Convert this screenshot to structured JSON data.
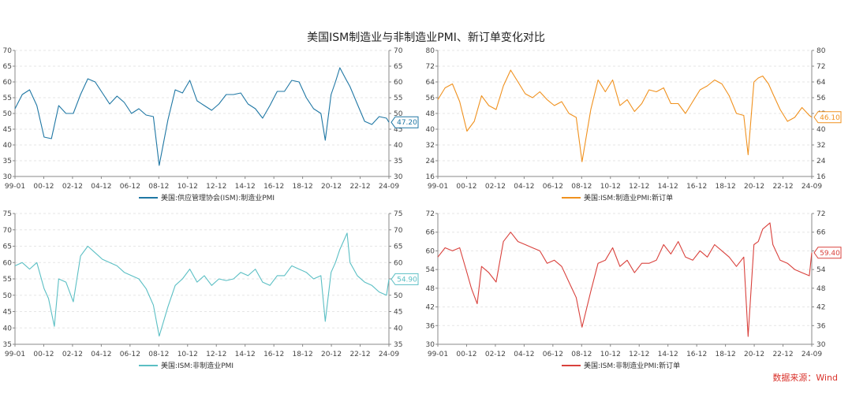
{
  "title": "美国ISM制造业与非制造业PMI、新订单变化对比",
  "source": "数据来源：Wind",
  "chart_data": [
    {
      "type": "line",
      "legend": "美国:供应管理协会(ISM):制造业PMI",
      "color": "#1f77a4",
      "ylim": [
        30,
        70
      ],
      "yticks": [
        30,
        35,
        40,
        45,
        50,
        55,
        60,
        65,
        70
      ],
      "xticks": [
        "99-01",
        "00-12",
        "02-12",
        "04-12",
        "06-12",
        "08-12",
        "10-12",
        "12-12",
        "14-12",
        "16-12",
        "18-12",
        "20-12",
        "22-12",
        "24-09"
      ],
      "last_value_label": "47.20",
      "x": [
        1999.0,
        1999.5,
        2000.0,
        2000.5,
        2001.0,
        2001.5,
        2002.0,
        2002.5,
        2003.0,
        2003.5,
        2004.0,
        2004.5,
        2005.0,
        2005.5,
        2006.0,
        2006.5,
        2007.0,
        2007.5,
        2008.0,
        2008.5,
        2008.9,
        2009.5,
        2010.0,
        2010.5,
        2011.0,
        2011.5,
        2012.0,
        2012.5,
        2013.0,
        2013.5,
        2014.0,
        2014.5,
        2015.0,
        2015.5,
        2016.0,
        2016.5,
        2017.0,
        2017.5,
        2018.0,
        2018.5,
        2019.0,
        2019.5,
        2020.0,
        2020.3,
        2020.7,
        2021.0,
        2021.3,
        2021.7,
        2022.0,
        2022.5,
        2023.0,
        2023.5,
        2024.0,
        2024.5,
        2024.67
      ],
      "values": [
        51.5,
        56.0,
        57.5,
        52.5,
        42.5,
        42.0,
        52.5,
        50.0,
        50.0,
        56.0,
        61.0,
        60.0,
        56.5,
        53.0,
        55.5,
        53.5,
        50.0,
        51.5,
        49.5,
        49.0,
        33.5,
        48.0,
        57.5,
        56.5,
        60.5,
        54.0,
        52.5,
        51.0,
        53.0,
        56.0,
        56.0,
        56.5,
        53.0,
        51.5,
        48.5,
        52.5,
        57.0,
        57.0,
        60.5,
        60.0,
        55.0,
        51.5,
        50.0,
        41.5,
        56.0,
        60.0,
        64.5,
        61.0,
        58.5,
        53.0,
        47.5,
        46.5,
        49.0,
        48.5,
        47.2
      ]
    },
    {
      "type": "line",
      "legend": "美国:ISM:制造业PMI:新订单",
      "color": "#f0911e",
      "ylim": [
        16,
        80
      ],
      "yticks": [
        16,
        24,
        32,
        40,
        48,
        56,
        64,
        72,
        80
      ],
      "xticks": [
        "99-01",
        "00-12",
        "02-12",
        "04-12",
        "06-12",
        "08-12",
        "10-12",
        "12-12",
        "14-12",
        "16-12",
        "18-12",
        "20-12",
        "22-12",
        "24-09"
      ],
      "last_value_label": "46.10",
      "x": [
        1999.0,
        1999.5,
        2000.0,
        2000.5,
        2001.0,
        2001.5,
        2002.0,
        2002.5,
        2003.0,
        2003.5,
        2004.0,
        2004.5,
        2005.0,
        2005.5,
        2006.0,
        2006.5,
        2007.0,
        2007.5,
        2008.0,
        2008.5,
        2008.9,
        2009.5,
        2010.0,
        2010.5,
        2011.0,
        2011.5,
        2012.0,
        2012.5,
        2013.0,
        2013.5,
        2014.0,
        2014.5,
        2015.0,
        2015.5,
        2016.0,
        2016.5,
        2017.0,
        2017.5,
        2018.0,
        2018.5,
        2019.0,
        2019.5,
        2020.0,
        2020.3,
        2020.7,
        2021.0,
        2021.3,
        2021.7,
        2022.0,
        2022.5,
        2023.0,
        2023.5,
        2024.0,
        2024.5,
        2024.67
      ],
      "values": [
        55.0,
        61.0,
        63.0,
        54.0,
        39.0,
        44.0,
        57.0,
        52.0,
        50.0,
        62.0,
        70.0,
        64.0,
        58.0,
        56.0,
        59.0,
        55.0,
        52.0,
        54.0,
        48.0,
        46.0,
        23.5,
        50.0,
        65.0,
        59.0,
        65.0,
        52.0,
        55.0,
        49.0,
        53.0,
        60.0,
        59.0,
        61.0,
        53.0,
        53.0,
        48.0,
        54.0,
        60.0,
        62.0,
        65.0,
        63.0,
        57.0,
        48.0,
        47.0,
        27.0,
        64.0,
        66.0,
        67.0,
        63.0,
        58.0,
        50.0,
        44.0,
        46.0,
        51.0,
        47.0,
        46.1
      ]
    },
    {
      "type": "line",
      "legend": "美国:ISM:非制造业PMI",
      "color": "#5bbfc4",
      "ylim": [
        35,
        75
      ],
      "yticks": [
        35,
        40,
        45,
        50,
        55,
        60,
        65,
        70,
        75
      ],
      "xticks": [
        "99-01",
        "00-12",
        "02-12",
        "04-12",
        "06-12",
        "08-12",
        "10-12",
        "12-12",
        "14-12",
        "16-12",
        "18-12",
        "20-12",
        "22-12",
        "24-09"
      ],
      "last_value_label": "54.90",
      "x": [
        1999.0,
        1999.5,
        2000.0,
        2000.5,
        2001.0,
        2001.3,
        2001.7,
        2002.0,
        2002.5,
        2003.0,
        2003.5,
        2004.0,
        2004.5,
        2005.0,
        2005.5,
        2006.0,
        2006.5,
        2007.0,
        2007.5,
        2008.0,
        2008.5,
        2008.9,
        2009.5,
        2010.0,
        2010.5,
        2011.0,
        2011.5,
        2012.0,
        2012.5,
        2013.0,
        2013.5,
        2014.0,
        2014.5,
        2015.0,
        2015.5,
        2016.0,
        2016.5,
        2017.0,
        2017.5,
        2018.0,
        2018.5,
        2019.0,
        2019.5,
        2020.0,
        2020.3,
        2020.7,
        2021.0,
        2021.3,
        2021.8,
        2022.0,
        2022.5,
        2023.0,
        2023.5,
        2024.0,
        2024.5,
        2024.67
      ],
      "values": [
        59.0,
        60.0,
        58.0,
        60.0,
        52.0,
        49.0,
        40.5,
        55.0,
        54.0,
        48.0,
        62.0,
        65.0,
        63.0,
        61.0,
        60.0,
        59.0,
        57.0,
        56.0,
        55.0,
        52.0,
        47.0,
        37.5,
        46.5,
        53.0,
        55.0,
        58.0,
        54.0,
        56.0,
        53.0,
        55.0,
        54.5,
        55.0,
        57.0,
        56.0,
        58.0,
        54.0,
        53.0,
        56.0,
        56.0,
        59.0,
        58.0,
        57.0,
        55.0,
        56.0,
        42.0,
        57.0,
        60.0,
        64.0,
        69.0,
        60.0,
        56.0,
        54.0,
        53.0,
        51.0,
        50.0,
        54.9
      ]
    },
    {
      "type": "line",
      "legend": "美国:ISM:非制造业PMI:新订单",
      "color": "#d9413c",
      "ylim": [
        30,
        72
      ],
      "yticks": [
        30,
        36,
        42,
        48,
        54,
        60,
        66,
        72
      ],
      "xticks": [
        "99-01",
        "00-12",
        "02-12",
        "04-12",
        "06-12",
        "08-12",
        "10-12",
        "12-12",
        "14-12",
        "16-12",
        "18-12",
        "20-12",
        "22-12",
        "24-09"
      ],
      "last_value_label": "59.40",
      "x": [
        1999.0,
        1999.5,
        2000.0,
        2000.5,
        2001.0,
        2001.3,
        2001.7,
        2002.0,
        2002.5,
        2003.0,
        2003.5,
        2004.0,
        2004.5,
        2005.0,
        2005.5,
        2006.0,
        2006.5,
        2007.0,
        2007.5,
        2008.0,
        2008.5,
        2008.9,
        2009.5,
        2010.0,
        2010.5,
        2011.0,
        2011.5,
        2012.0,
        2012.5,
        2013.0,
        2013.5,
        2014.0,
        2014.5,
        2015.0,
        2015.5,
        2016.0,
        2016.5,
        2017.0,
        2017.5,
        2018.0,
        2018.5,
        2019.0,
        2019.5,
        2020.0,
        2020.3,
        2020.7,
        2021.0,
        2021.3,
        2021.8,
        2022.0,
        2022.5,
        2023.0,
        2023.5,
        2024.0,
        2024.5,
        2024.67
      ],
      "values": [
        58.0,
        61.0,
        60.0,
        61.0,
        53.0,
        48.0,
        43.0,
        55.0,
        53.0,
        50.0,
        63.0,
        66.0,
        63.0,
        62.0,
        61.0,
        60.0,
        56.0,
        57.0,
        55.0,
        50.0,
        45.0,
        35.5,
        47.0,
        56.0,
        57.0,
        61.0,
        55.0,
        57.0,
        53.0,
        56.0,
        56.0,
        57.0,
        62.0,
        59.0,
        63.0,
        58.0,
        57.0,
        60.0,
        58.0,
        62.0,
        60.0,
        58.0,
        55.0,
        58.0,
        32.5,
        62.0,
        63.0,
        67.0,
        69.0,
        62.0,
        57.0,
        56.0,
        54.0,
        53.0,
        52.0,
        59.4
      ]
    }
  ]
}
